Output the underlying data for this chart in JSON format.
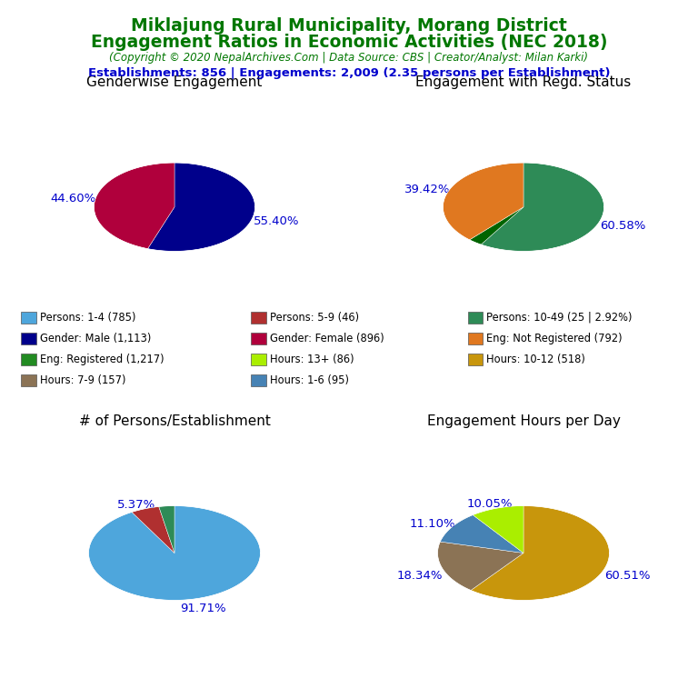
{
  "title_line1": "Miklajung Rural Municipality, Morang District",
  "title_line2": "Engagement Ratios in Economic Activities (NEC 2018)",
  "subtitle": "(Copyright © 2020 NepalArchives.Com | Data Source: CBS | Creator/Analyst: Milan Karki)",
  "stats_line": "Establishments: 856 | Engagements: 2,009 (2.35 persons per Establishment)",
  "title_color": "#007700",
  "subtitle_color": "#007700",
  "stats_color": "#0000CC",
  "pct_label_color": "#0000CC",
  "pie1_title": "Genderwise Engagement",
  "pie1_values": [
    55.4,
    44.6
  ],
  "pie1_colors": [
    "#00008B",
    "#B0003C"
  ],
  "pie1_labels": [
    "55.40%",
    "44.60%"
  ],
  "pie1_label_angles": [
    90,
    270
  ],
  "pie1_shadow_color": "#6B0000",
  "pie2_title": "Engagement with Regd. Status",
  "pie2_values": [
    60.58,
    2.92,
    39.42
  ],
  "pie2_colors": [
    "#2E8B57",
    "#006400",
    "#E07820"
  ],
  "pie2_labels": [
    "60.58%",
    "",
    "39.42%"
  ],
  "pie2_label_angles": [
    90,
    0,
    270
  ],
  "pie2_shadow_color": "#7A3200",
  "pie3_title": "# of Persons/Establishment",
  "pie3_values": [
    91.71,
    5.37,
    2.92
  ],
  "pie3_colors": [
    "#4EA6DC",
    "#B03030",
    "#2E8B57"
  ],
  "pie3_labels": [
    "91.71%",
    "5.37%",
    ""
  ],
  "pie3_label_angles": [
    180,
    310,
    0
  ],
  "pie3_shadow_color": "#00008B",
  "pie4_title": "Engagement Hours per Day",
  "pie4_values": [
    60.51,
    18.34,
    11.1,
    10.05
  ],
  "pie4_colors": [
    "#C8960C",
    "#8B7355",
    "#4682B4",
    "#AAEE00"
  ],
  "pie4_labels": [
    "60.51%",
    "18.34%",
    "11.10%",
    "10.05%"
  ],
  "pie4_label_angles": [
    210,
    0,
    60,
    330
  ],
  "pie4_shadow_color": "#9A7000",
  "legend_items": [
    {
      "label": "Persons: 1-4 (785)",
      "color": "#4EA6DC"
    },
    {
      "label": "Persons: 5-9 (46)",
      "color": "#B03030"
    },
    {
      "label": "Persons: 10-49 (25 | 2.92%)",
      "color": "#2E8B57"
    },
    {
      "label": "Gender: Male (1,113)",
      "color": "#00008B"
    },
    {
      "label": "Gender: Female (896)",
      "color": "#B0003C"
    },
    {
      "label": "Eng: Not Registered (792)",
      "color": "#E07820"
    },
    {
      "label": "Eng: Registered (1,217)",
      "color": "#228B22"
    },
    {
      "label": "Hours: 13+ (86)",
      "color": "#AAEE00"
    },
    {
      "label": "Hours: 10-12 (518)",
      "color": "#C8960C"
    },
    {
      "label": "Hours: 7-9 (157)",
      "color": "#8B7355"
    },
    {
      "label": "Hours: 1-6 (95)",
      "color": "#4682B4"
    }
  ],
  "background_color": "#FFFFFF"
}
